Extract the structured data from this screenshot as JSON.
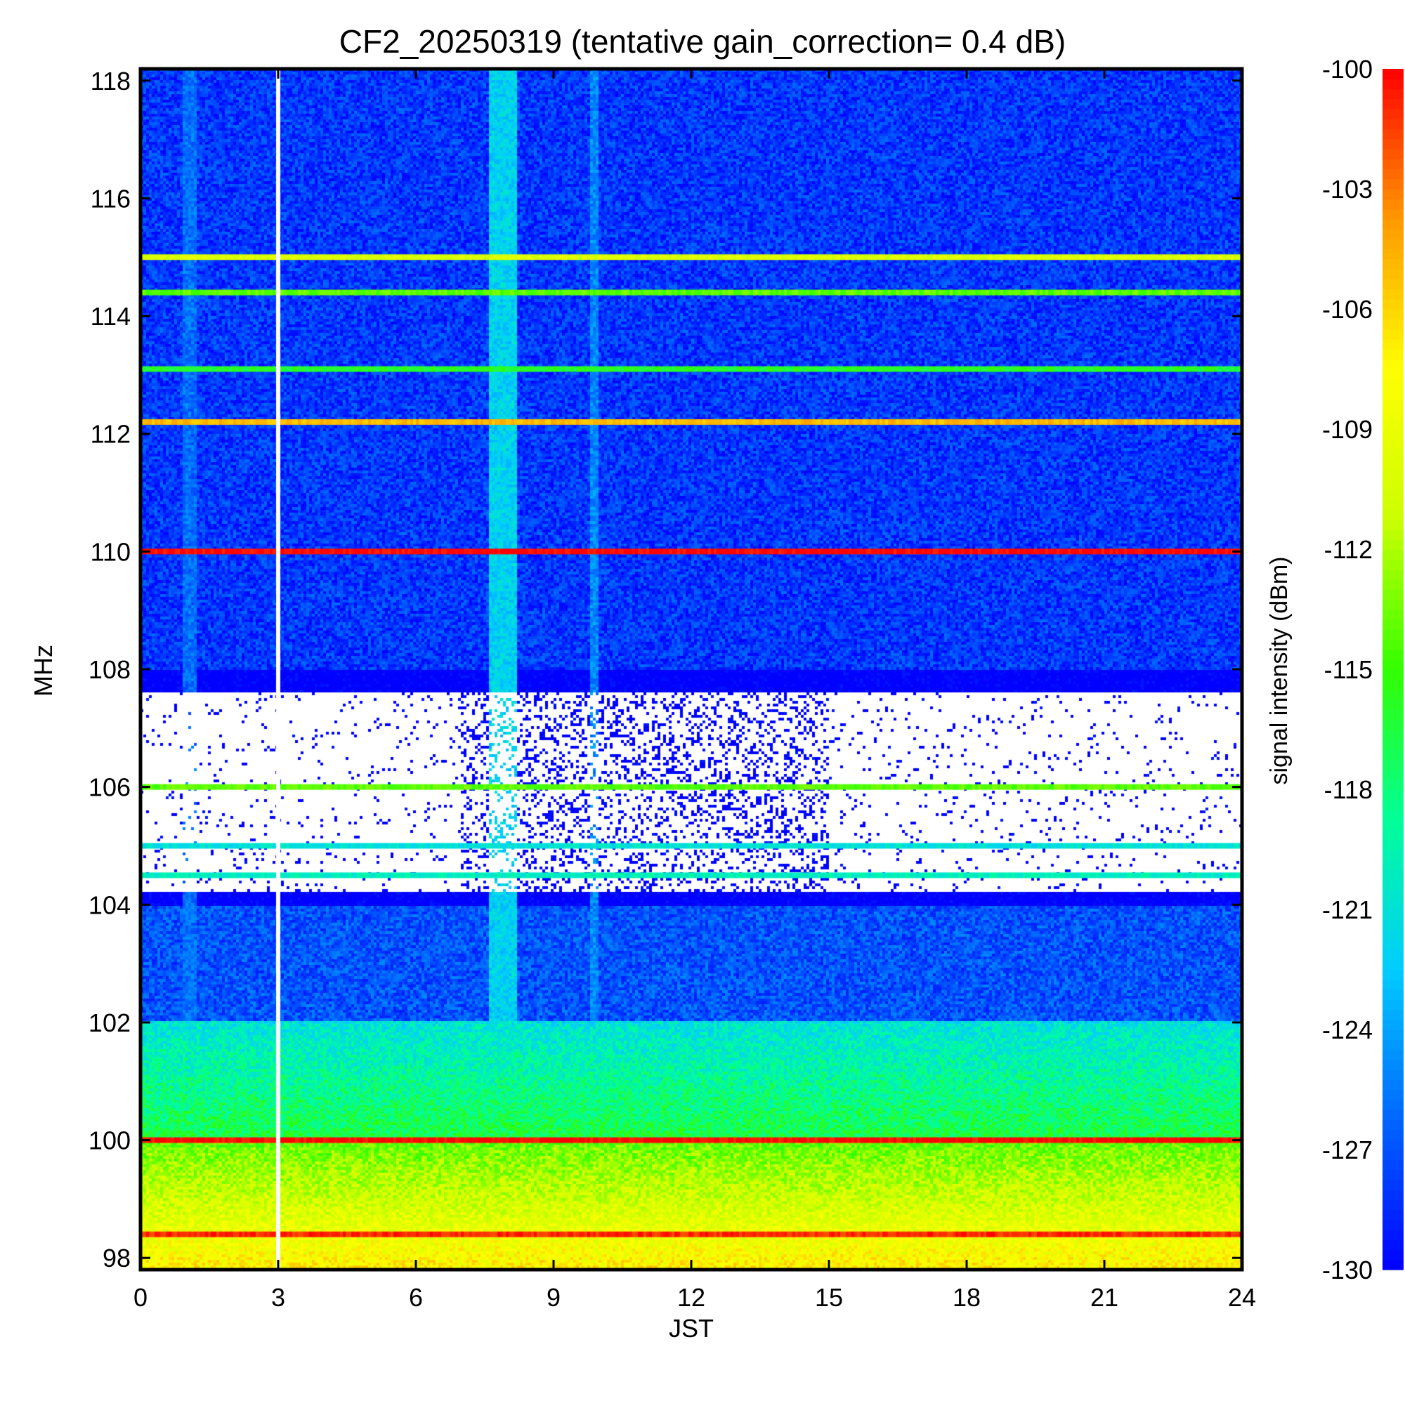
{
  "chart_data": {
    "type": "heatmap",
    "title": "CF2_20250319 (tentative gain_correction=  0.4 dB)",
    "xlabel": "JST",
    "ylabel": "MHz",
    "colorbar_label": "signal intensity (dBm)",
    "x_range": [
      0,
      24
    ],
    "y_range": [
      97.8,
      118.2
    ],
    "x_ticks": [
      0,
      3,
      6,
      9,
      12,
      15,
      18,
      21,
      24
    ],
    "x_tick_labels": [
      "0",
      "3",
      "6",
      "9",
      "12",
      "15",
      "18",
      "21",
      "24"
    ],
    "y_ticks": [
      98,
      100,
      102,
      104,
      106,
      108,
      110,
      112,
      114,
      116,
      118
    ],
    "y_tick_labels": [
      "98",
      "100",
      "102",
      "104",
      "106",
      "108",
      "110",
      "112",
      "114",
      "116",
      "118"
    ],
    "colorbar_range": [
      -130,
      -100
    ],
    "colorbar_ticks": [
      -100,
      -103,
      -106,
      -109,
      -112,
      -115,
      -118,
      -121,
      -124,
      -127,
      -130
    ],
    "colorbar_tick_labels": [
      "-100",
      "-103",
      "-106",
      "-109",
      "-112",
      "-115",
      "-118",
      "-121",
      "-124",
      "-127",
      "-130"
    ],
    "colormap": [
      "#0000ff",
      "#0066ff",
      "#00ccff",
      "#00ff99",
      "#33ff00",
      "#ccff00",
      "#ffff00",
      "#ff9900",
      "#ff0000"
    ],
    "data_gap_hour": 3.0,
    "strong_carriers": [
      {
        "freq_mhz": 110.0,
        "level_dbm": -100
      },
      {
        "freq_mhz": 100.0,
        "level_dbm": -100
      },
      {
        "freq_mhz": 112.2,
        "level_dbm": -105
      },
      {
        "freq_mhz": 98.4,
        "level_dbm": -101
      },
      {
        "freq_mhz": 115.0,
        "level_dbm": -110
      },
      {
        "freq_mhz": 114.4,
        "level_dbm": -114
      },
      {
        "freq_mhz": 113.1,
        "level_dbm": -116
      },
      {
        "freq_mhz": 105.0,
        "level_dbm": -121
      },
      {
        "freq_mhz": 106.0,
        "level_dbm": -114
      },
      {
        "freq_mhz": 104.5,
        "level_dbm": -120
      }
    ],
    "background_levels": [
      {
        "freq_range_mhz": [
          108.0,
          118.2
        ],
        "level_dbm": -128
      },
      {
        "freq_range_mhz": [
          104.0,
          108.0
        ],
        "level_dbm": -131
      },
      {
        "freq_range_mhz": [
          102.0,
          104.0
        ],
        "level_dbm": -127
      },
      {
        "freq_range_mhz": [
          100.0,
          102.0
        ],
        "level_dbm": -121
      },
      {
        "freq_range_mhz": [
          97.8,
          100.0
        ],
        "level_dbm": -114
      }
    ],
    "broadband_events": [
      {
        "time_range_h": [
          7.6,
          8.2
        ],
        "level_dbm": -122
      },
      {
        "time_range_h": [
          9.8,
          10.0
        ],
        "level_dbm": -125
      },
      {
        "time_range_h": [
          0.9,
          1.2
        ],
        "level_dbm": -126
      }
    ]
  }
}
